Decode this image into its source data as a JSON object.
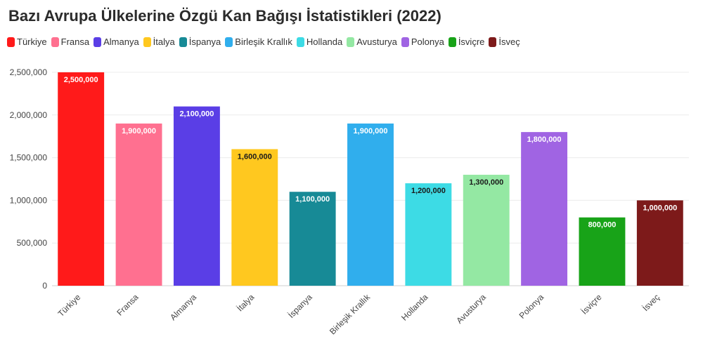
{
  "chart_data": {
    "type": "bar",
    "title": "Bazı Avrupa Ülkelerine Özgü Kan Bağışı İstatistikleri (2022)",
    "xlabel": "",
    "ylabel": "",
    "categories": [
      "Türkiye",
      "Fransa",
      "Almanya",
      "İtalya",
      "İspanya",
      "Birleşik Krallık",
      "Hollanda",
      "Avusturya",
      "Polonya",
      "İsviçre",
      "İsveç"
    ],
    "values": [
      2500000,
      1900000,
      2100000,
      1600000,
      1100000,
      1900000,
      1200000,
      1300000,
      1800000,
      800000,
      1000000
    ],
    "value_labels": [
      "2,500,000",
      "1,900,000",
      "2,100,000",
      "1,600,000",
      "1,100,000",
      "1,900,000",
      "1,200,000",
      "1,300,000",
      "1,800,000",
      "800,000",
      "1,000,000"
    ],
    "colors": [
      "#ff1a1a",
      "#ff7090",
      "#5a3ee6",
      "#ffc81f",
      "#178a96",
      "#30aeed",
      "#3ddbe5",
      "#94e8a3",
      "#a064e3",
      "#18a318",
      "#7d1a1a"
    ],
    "label_text_colors": [
      "#ffffff",
      "#ffffff",
      "#ffffff",
      "#1a1a1a",
      "#ffffff",
      "#ffffff",
      "#1a1a1a",
      "#1a1a1a",
      "#ffffff",
      "#ffffff",
      "#ffffff"
    ],
    "ylim": [
      0,
      2500000
    ],
    "yticks": [
      0,
      500000,
      1000000,
      1500000,
      2000000,
      2500000
    ],
    "ytick_labels": [
      "0",
      "500,000",
      "1,000,000",
      "1,500,000",
      "2,000,000",
      "2,500,000"
    ],
    "grid": true,
    "legend_position": "top-left"
  }
}
